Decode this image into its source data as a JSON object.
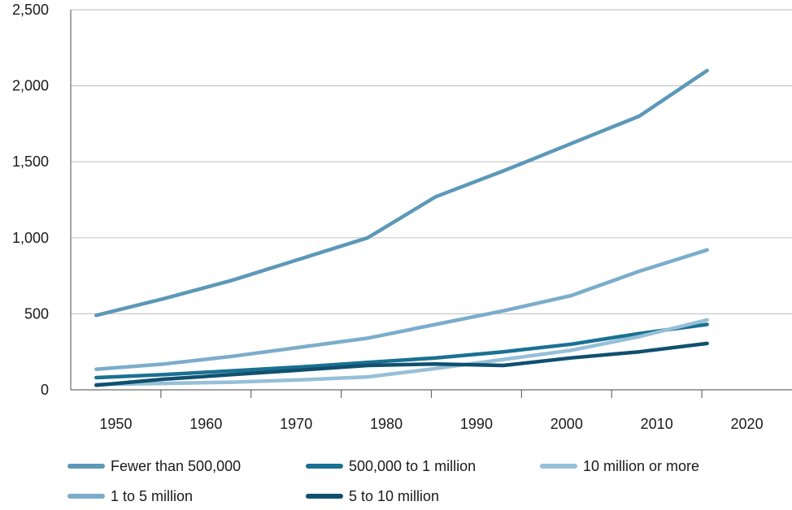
{
  "chart_data": {
    "type": "line",
    "title": "",
    "xlabel": "",
    "ylabel": "",
    "categories": [
      "1950",
      "1960",
      "1970",
      "1980",
      "1990",
      "2000",
      "2010",
      "2020"
    ],
    "ylim": [
      0,
      2500
    ],
    "xlim": [
      1945,
      2030
    ],
    "y_ticks": [
      0,
      500,
      1000,
      1500,
      2000,
      2500
    ],
    "y_tick_labels": [
      "0",
      "500",
      "1,000",
      "1,500",
      "2,000",
      "2,500"
    ],
    "grid": "horizontal",
    "legend_position": "bottom",
    "series": [
      {
        "name": "Fewer than 500,000",
        "color": "#5c98b8",
        "x": [
          1948,
          1956,
          1964,
          1972,
          1980,
          1988,
          1996,
          2004,
          2012,
          2020
        ],
        "y": [
          490,
          600,
          720,
          860,
          1000,
          1270,
          1440,
          1620,
          1800,
          2100
        ]
      },
      {
        "name": "500,000 to 1 million",
        "color": "#1a7192",
        "x": [
          1948,
          1956,
          1964,
          1972,
          1980,
          1988,
          1996,
          2004,
          2012,
          2020
        ],
        "y": [
          80,
          100,
          125,
          150,
          180,
          210,
          250,
          300,
          370,
          430
        ]
      },
      {
        "name": "10 million or more",
        "color": "#96bfd8",
        "x": [
          1948,
          1956,
          1964,
          1972,
          1980,
          1988,
          1996,
          2004,
          2012,
          2020
        ],
        "y": [
          35,
          42,
          50,
          65,
          85,
          140,
          200,
          260,
          350,
          460
        ]
      },
      {
        "name": "1 to 5 million",
        "color": "#7badcb",
        "x": [
          1948,
          1956,
          1964,
          1972,
          1980,
          1988,
          1996,
          2004,
          2012,
          2020
        ],
        "y": [
          135,
          170,
          220,
          280,
          340,
          430,
          520,
          620,
          780,
          920
        ]
      },
      {
        "name": "5 to 10 million",
        "color": "#10506f",
        "x": [
          1948,
          1956,
          1964,
          1972,
          1980,
          1988,
          1996,
          2004,
          2012,
          2020
        ],
        "y": [
          30,
          70,
          100,
          130,
          160,
          170,
          160,
          210,
          250,
          305
        ]
      }
    ]
  },
  "colors": {
    "axis": "#6b6b6b",
    "grid": "#c8c8c8"
  }
}
